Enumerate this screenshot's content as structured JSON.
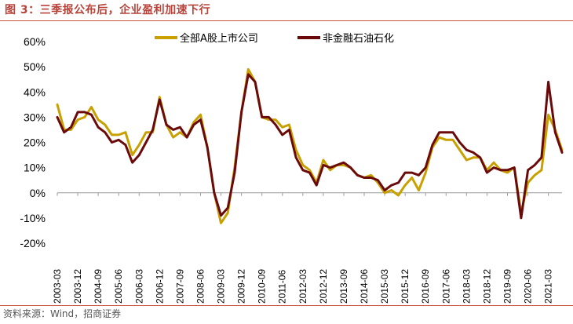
{
  "figure": {
    "title": "图 3：三季报公布后，企业盈利加速下行",
    "source": "资料来源：Wind，招商证券"
  },
  "colors": {
    "series_a": "#c8a000",
    "series_b": "#6b0a0a",
    "accent": "#c9573f"
  },
  "chart_data": {
    "type": "line",
    "ylim": [
      -20,
      60
    ],
    "yticks": [
      "60%",
      "50%",
      "40%",
      "30%",
      "20%",
      "10%",
      "0%",
      "-10%",
      "-20%"
    ],
    "ytick_values": [
      60,
      50,
      40,
      30,
      20,
      10,
      0,
      -10,
      -20
    ],
    "xtick_labels": [
      "2003-03",
      "2003-12",
      "2004-09",
      "2005-06",
      "2006-03",
      "2006-12",
      "2007-09",
      "2008-06",
      "2009-03",
      "2009-12",
      "2010-09",
      "2011-06",
      "2012-03",
      "2012-12",
      "2013-09",
      "2014-06",
      "2015-03",
      "2015-12",
      "2016-09",
      "2017-06",
      "2018-03",
      "2018-12",
      "2019-09",
      "2020-06",
      "2021-03"
    ],
    "legend_position": "top-center",
    "grid": false,
    "series": [
      {
        "name": "全部A股上市公司",
        "color": "#c8a000",
        "values": [
          35,
          25,
          25,
          29,
          30,
          34,
          29,
          27,
          23,
          23,
          24,
          15,
          19,
          24,
          24,
          38,
          27,
          22,
          24,
          22,
          28,
          31,
          18,
          0,
          -12,
          -8,
          10,
          32,
          49,
          44,
          30,
          29,
          29,
          26,
          27,
          17,
          11,
          9,
          4,
          13,
          9,
          11,
          11,
          10,
          7,
          6,
          7,
          4,
          0,
          1,
          -1,
          3,
          6,
          1,
          8,
          18,
          22,
          21,
          21,
          17,
          13,
          14,
          14,
          9,
          12,
          9,
          8,
          10,
          -8,
          4,
          7,
          9,
          31,
          25,
          17
        ]
      },
      {
        "name": "非金融石油石化",
        "color": "#6b0a0a",
        "values": [
          30,
          24,
          26,
          32,
          32,
          31,
          26,
          24,
          20,
          21,
          19,
          12,
          15,
          20,
          25,
          37,
          27,
          25,
          26,
          22,
          27,
          29,
          18,
          0,
          -9,
          -6,
          8,
          32,
          47,
          44,
          30,
          30,
          27,
          23,
          25,
          14,
          9,
          8,
          3,
          11,
          10,
          11,
          12,
          10,
          7,
          6,
          6,
          5,
          1,
          3,
          4,
          8,
          8,
          7,
          10,
          19,
          24,
          24,
          24,
          20,
          17,
          16,
          14,
          8,
          10,
          9,
          9,
          10,
          -10,
          9,
          11,
          14,
          44,
          24,
          16
        ]
      }
    ]
  }
}
